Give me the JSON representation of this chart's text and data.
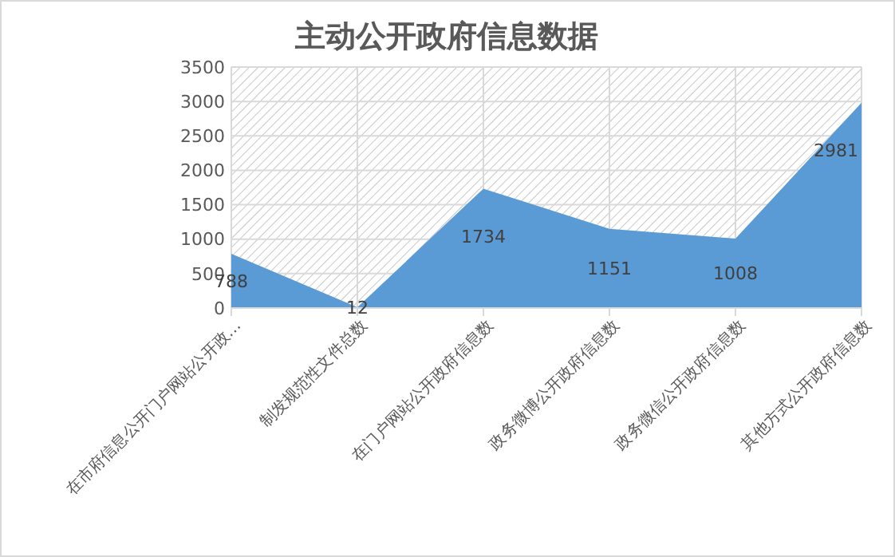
{
  "chart_data": {
    "type": "area",
    "title": "主动公开政府信息数据",
    "categories": [
      "在市府信息公开门户网站公开政…",
      "制发规范性文件总数",
      "在门户网站公开政府信息数",
      "政务微博公开政府信息数",
      "政务微信公开政府信息数",
      "其他方式公开政府信息数"
    ],
    "series": [
      {
        "color": "#5b9bd5",
        "values": [
          788,
          12,
          1734,
          1151,
          1008,
          2981
        ]
      }
    ],
    "ylim": [
      0,
      3500
    ],
    "yticks": [
      0,
      500,
      1000,
      1500,
      2000,
      2500,
      3000,
      3500
    ],
    "grid": true,
    "data_labels": true
  }
}
